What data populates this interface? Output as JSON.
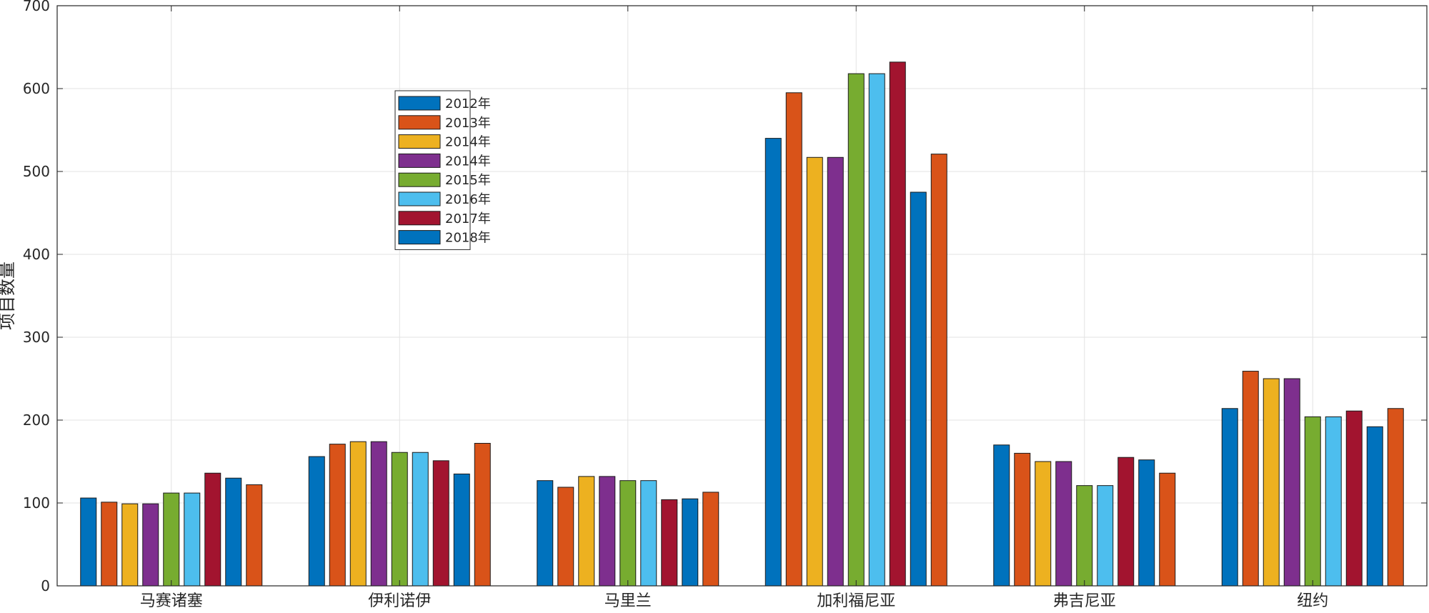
{
  "chart_data": {
    "type": "bar",
    "title": "",
    "xlabel": "",
    "ylabel": "项目数量",
    "categories": [
      "马赛诸塞",
      "伊利诺伊",
      "马里兰",
      "加利福尼亚",
      "弗吉尼亚",
      "纽约"
    ],
    "ylim": [
      0,
      700
    ],
    "yticks": [
      "0",
      "100",
      "200",
      "300",
      "400",
      "500",
      "600",
      "700"
    ],
    "grid": true,
    "legend_position": "upper-left-inside",
    "series": [
      {
        "name": "2012年",
        "color": "#0072BD",
        "values": [
          106,
          156,
          127,
          540,
          170,
          214
        ]
      },
      {
        "name": "2013年",
        "color": "#D95319",
        "values": [
          101,
          171,
          119,
          595,
          160,
          259
        ]
      },
      {
        "name": "2014年",
        "color": "#EDB120",
        "values": [
          99,
          174,
          132,
          517,
          150,
          250
        ]
      },
      {
        "name": "2014年",
        "color": "#7E2F8E",
        "values": [
          99,
          174,
          132,
          517,
          150,
          250
        ]
      },
      {
        "name": "2015年",
        "color": "#77AC30",
        "values": [
          112,
          161,
          127,
          618,
          121,
          204
        ]
      },
      {
        "name": "2016年",
        "color": "#4DBEEE",
        "values": [
          112,
          161,
          127,
          618,
          121,
          204
        ]
      },
      {
        "name": "2017年",
        "color": "#A2142F",
        "values": [
          136,
          151,
          104,
          632,
          155,
          211
        ]
      },
      {
        "name": "2018年",
        "color": "#0072BD",
        "values": [
          130,
          135,
          105,
          475,
          152,
          192
        ]
      },
      {
        "name": "",
        "color": "#D95319",
        "values": [
          122,
          172,
          113,
          521,
          136,
          214
        ]
      }
    ]
  }
}
